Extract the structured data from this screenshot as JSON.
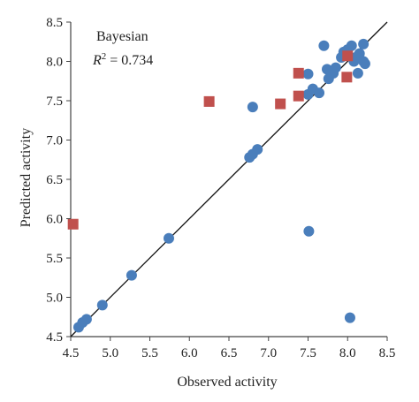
{
  "chart_data": {
    "type": "scatter",
    "title": "",
    "xlabel": "Observed activity",
    "ylabel": "Predicted activity",
    "xlim": [
      4.5,
      8.5
    ],
    "ylim": [
      4.5,
      8.5
    ],
    "xticks": [
      "4.5",
      "5.0",
      "5.5",
      "6.0",
      "6.5",
      "7.0",
      "7.5",
      "8.0",
      "8.5"
    ],
    "yticks": [
      "4.5",
      "5.0",
      "5.5",
      "6.0",
      "6.5",
      "7.0",
      "7.5",
      "8.0",
      "8.5"
    ],
    "annotation": {
      "method": "Bayesian",
      "r2_label": "R",
      "r2_sup": "2",
      "r2_value": " = 0.734"
    },
    "grid": false,
    "series": [
      {
        "marker": "circle",
        "color": "#4a7ebb",
        "points": [
          [
            4.6,
            4.62
          ],
          [
            4.65,
            4.68
          ],
          [
            4.7,
            4.72
          ],
          [
            4.9,
            4.9
          ],
          [
            5.27,
            5.28
          ],
          [
            5.74,
            5.75
          ],
          [
            6.76,
            6.78
          ],
          [
            6.8,
            6.82
          ],
          [
            6.86,
            6.88
          ],
          [
            6.8,
            7.42
          ],
          [
            7.5,
            7.58
          ],
          [
            7.56,
            7.65
          ],
          [
            7.64,
            7.6
          ],
          [
            7.5,
            7.84
          ],
          [
            7.7,
            8.2
          ],
          [
            7.74,
            7.9
          ],
          [
            7.76,
            7.78
          ],
          [
            7.82,
            7.85
          ],
          [
            7.85,
            7.92
          ],
          [
            7.92,
            8.05
          ],
          [
            7.95,
            8.12
          ],
          [
            8.0,
            8.15
          ],
          [
            8.05,
            8.2
          ],
          [
            8.08,
            8.0
          ],
          [
            8.1,
            8.05
          ],
          [
            8.13,
            7.85
          ],
          [
            8.15,
            8.1
          ],
          [
            8.2,
            8.22
          ],
          [
            8.2,
            8.0
          ],
          [
            8.22,
            7.97
          ],
          [
            7.51,
            5.84
          ],
          [
            8.03,
            4.74
          ]
        ]
      },
      {
        "marker": "square",
        "color": "#c0504d",
        "points": [
          [
            4.53,
            5.93
          ],
          [
            6.25,
            7.49
          ],
          [
            7.15,
            7.46
          ],
          [
            7.38,
            7.56
          ],
          [
            7.38,
            7.85
          ],
          [
            7.99,
            7.8
          ],
          [
            8.0,
            8.07
          ]
        ]
      }
    ],
    "reference_line": {
      "from": [
        4.5,
        4.5
      ],
      "to": [
        8.5,
        8.5
      ]
    }
  }
}
